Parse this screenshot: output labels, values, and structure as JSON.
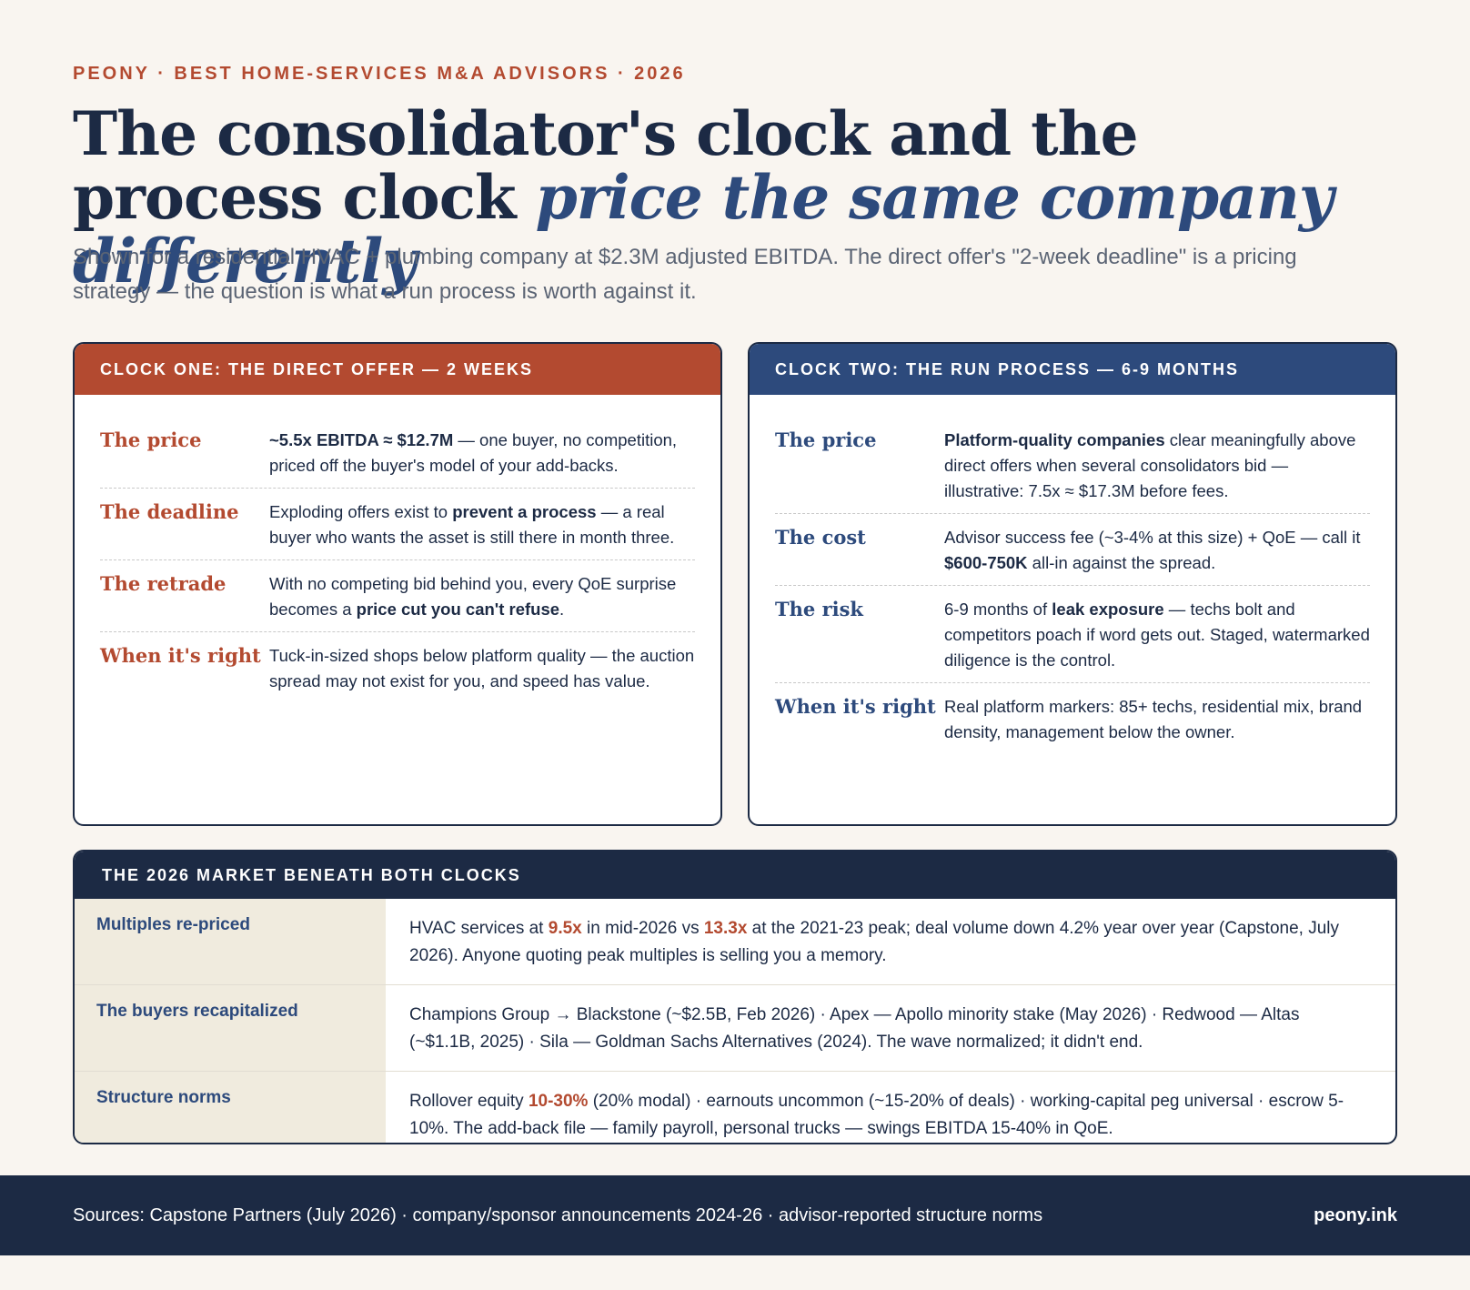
{
  "header": {
    "kicker": "PEONY · BEST HOME-SERVICES M&A ADVISORS · 2026",
    "title_plain": "The consolidator's clock and the process clock",
    "title_accent": "price the same company differently",
    "subtitle": "Shown for a residential HVAC + plumbing company at $2.3M adjusted EBITDA. The direct offer's \"2-week deadline\" is a pricing strategy — the question is what a run process is worth against it."
  },
  "clock_one": {
    "heading": "CLOCK ONE: THE DIRECT OFFER — 2 WEEKS",
    "rows": [
      {
        "label": "The price",
        "bold1": "~5.5x EBITDA ≈ $12.7M",
        "text1": " — one buyer, no competition, priced off the buyer's model of your add-backs."
      },
      {
        "label": "The deadline",
        "text0": "Exploding offers exist to ",
        "bold1": "prevent a process",
        "text1": " — a real buyer who wants the asset is still there in month three."
      },
      {
        "label": "The retrade",
        "text0": "With no competing bid behind you, every QoE surprise becomes a ",
        "bold1": "price cut you can't refuse",
        "text1": "."
      },
      {
        "label": "When it's right",
        "text0": "Tuck-in-sized shops below platform quality — the auction spread may not exist for you, and speed has value."
      }
    ]
  },
  "clock_two": {
    "heading": "CLOCK TWO: THE RUN PROCESS — 6-9 MONTHS",
    "rows": [
      {
        "label": "The price",
        "bold1": "Platform-quality companies",
        "text1": " clear meaningfully above direct offers when several consolidators bid — illustrative: 7.5x ≈ $17.3M before fees."
      },
      {
        "label": "The cost",
        "text0": "Advisor success fee (~3-4% at this size) + QoE — call it ",
        "bold1": "$600-750K",
        "text1": " all-in against the spread."
      },
      {
        "label": "The risk",
        "text0": "6-9 months of ",
        "bold1": "leak exposure",
        "text1": " — techs bolt and competitors poach if word gets out. Staged, watermarked diligence is the control."
      },
      {
        "label": "When it's right",
        "text0": "Real platform markers: 85+ techs, residential mix, brand density, management below the owner."
      }
    ]
  },
  "market": {
    "heading": "THE 2026 MARKET BENEATH BOTH CLOCKS",
    "rows": [
      {
        "label": "Multiples re-priced",
        "t0": "HVAC services at ",
        "h1": "9.5x",
        "t1": " in mid-2026 vs ",
        "h2": "13.3x",
        "t2": " at the 2021-23 peak; deal volume down 4.2% year over year (Capstone, July 2026). Anyone quoting peak multiples is selling you a memory."
      },
      {
        "label": "The buyers recapitalized",
        "t0": "Champions Group → Blackstone (~$2.5B, Feb 2026) · Apex — Apollo minority stake (May 2026) · Redwood — Altas (~$1.1B, 2025) · Sila — Goldman Sachs Alternatives (2024). The wave normalized; it didn't end."
      },
      {
        "label": "Structure norms",
        "t0": "Rollover equity ",
        "h1": "10-30%",
        "t1": " (20% modal) · earnouts uncommon (~15-20% of deals) · working-capital peg universal · escrow 5-10%. The add-back file — family payroll, personal trucks — swings EBITDA 15-40% in QoE."
      }
    ]
  },
  "footer": {
    "sources": "Sources: Capstone Partners (July 2026) · company/sponsor announcements 2024-26 · advisor-reported structure norms",
    "brand": "peony.ink"
  },
  "colors": {
    "rust": "#b34a30",
    "navy": "#1c2a44",
    "blue": "#2d4a7c",
    "cream": "#f9f5f0"
  }
}
